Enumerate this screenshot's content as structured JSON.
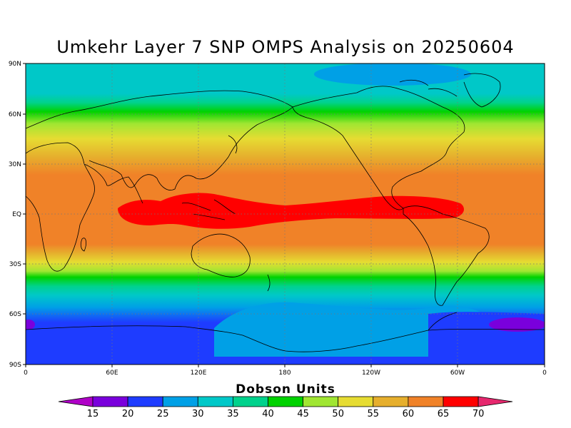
{
  "title": "Umkehr Layer 7 SNP OMPS Analysis on 20250604",
  "colorbar": {
    "label": "Dobson Units",
    "ticks": [
      "15",
      "20",
      "25",
      "30",
      "35",
      "40",
      "45",
      "50",
      "55",
      "60",
      "65",
      "70"
    ],
    "colors": [
      "#b000c8",
      "#7a00dc",
      "#1e3cff",
      "#00a0e6",
      "#00c8c8",
      "#00d28c",
      "#00d200",
      "#a0e632",
      "#e6dc32",
      "#e6af2d",
      "#f08228",
      "#ff0000",
      "#e6286e"
    ]
  },
  "axes": {
    "lat_labels": [
      "90N",
      "60N",
      "30N",
      "EQ",
      "30S",
      "60S",
      "90S"
    ],
    "lon_labels": [
      "0",
      "60E",
      "120E",
      "180",
      "120W",
      "60W",
      "0"
    ]
  },
  "map": {
    "projection": "cylindrical-equidistant",
    "grid": "dotted",
    "variable": "ozone",
    "units": "Dobson Units",
    "max_region": "equatorial band 80E-60W (>65 DU)",
    "min_region": "Antarctic / 60S-90S (20-25 DU)"
  }
}
